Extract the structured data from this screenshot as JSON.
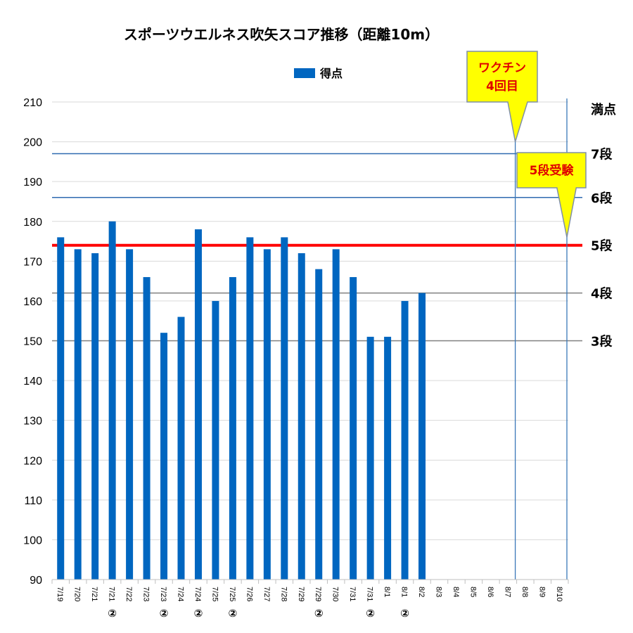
{
  "chart_data": {
    "type": "bar",
    "title": "スポーツウエルネス吹矢スコア推移（距離10m）",
    "legend": {
      "label": "得点",
      "position": "top-center"
    },
    "series": [
      {
        "name": "得点",
        "color": "#0066c0",
        "values": [
          176,
          173,
          172,
          180,
          173,
          166,
          152,
          156,
          178,
          160,
          166,
          176,
          173,
          176,
          172,
          168,
          173,
          166,
          151,
          151,
          160,
          162,
          null,
          null,
          null,
          null,
          null,
          null,
          null,
          null
        ]
      }
    ],
    "categories": [
      {
        "date": "7/19",
        "mark": ""
      },
      {
        "date": "7/20",
        "mark": ""
      },
      {
        "date": "7/21",
        "mark": ""
      },
      {
        "date": "7/21",
        "mark": "②"
      },
      {
        "date": "7/22",
        "mark": ""
      },
      {
        "date": "7/23",
        "mark": ""
      },
      {
        "date": "7/23",
        "mark": "②"
      },
      {
        "date": "7/24",
        "mark": ""
      },
      {
        "date": "7/24",
        "mark": "②"
      },
      {
        "date": "7/25",
        "mark": ""
      },
      {
        "date": "7/25",
        "mark": "②"
      },
      {
        "date": "7/26",
        "mark": ""
      },
      {
        "date": "7/27",
        "mark": ""
      },
      {
        "date": "7/28",
        "mark": ""
      },
      {
        "date": "7/29",
        "mark": ""
      },
      {
        "date": "7/29",
        "mark": "②"
      },
      {
        "date": "7/30",
        "mark": ""
      },
      {
        "date": "7/31",
        "mark": ""
      },
      {
        "date": "7/31",
        "mark": "②"
      },
      {
        "date": "8/1",
        "mark": ""
      },
      {
        "date": "8/1",
        "mark": "②"
      },
      {
        "date": "8/2",
        "mark": ""
      },
      {
        "date": "8/3",
        "mark": ""
      },
      {
        "date": "8/4",
        "mark": ""
      },
      {
        "date": "8/5",
        "mark": ""
      },
      {
        "date": "8/6",
        "mark": ""
      },
      {
        "date": "8/7",
        "mark": ""
      },
      {
        "date": "8/8",
        "mark": ""
      },
      {
        "date": "8/9",
        "mark": ""
      },
      {
        "date": "8/10",
        "mark": ""
      }
    ],
    "ylim": [
      90,
      210
    ],
    "yticks": [
      90,
      100,
      110,
      120,
      130,
      140,
      150,
      160,
      170,
      180,
      190,
      200,
      210
    ],
    "grid": true,
    "reference_lines": [
      {
        "label": "満点",
        "value": 210,
        "color": "#d0d0d0",
        "label_color": "#000000"
      },
      {
        "label": "7段",
        "value": 197,
        "color": "#2e6ab0",
        "label_color": "#000000"
      },
      {
        "label": "6段",
        "value": 186,
        "color": "#2e6ab0",
        "label_color": "#000000"
      },
      {
        "label": "5段",
        "value": 174,
        "color": "#ff0000",
        "label_color": "#ff0000"
      },
      {
        "label": "4段",
        "value": 162,
        "color": "#808080",
        "label_color": "#000000"
      },
      {
        "label": "3段",
        "value": 150,
        "color": "#808080",
        "label_color": "#000000"
      }
    ],
    "annotations": [
      {
        "lines": [
          "ワクチン",
          "4回目"
        ],
        "target_date": "8/7",
        "points_to_value": 200,
        "fill": "#ffff00",
        "text_color": "#e00000"
      },
      {
        "lines": [
          "5段受験"
        ],
        "target_date": "8/10",
        "points_to_value": 176,
        "fill": "#ffff00",
        "text_color": "#e00000"
      }
    ]
  }
}
